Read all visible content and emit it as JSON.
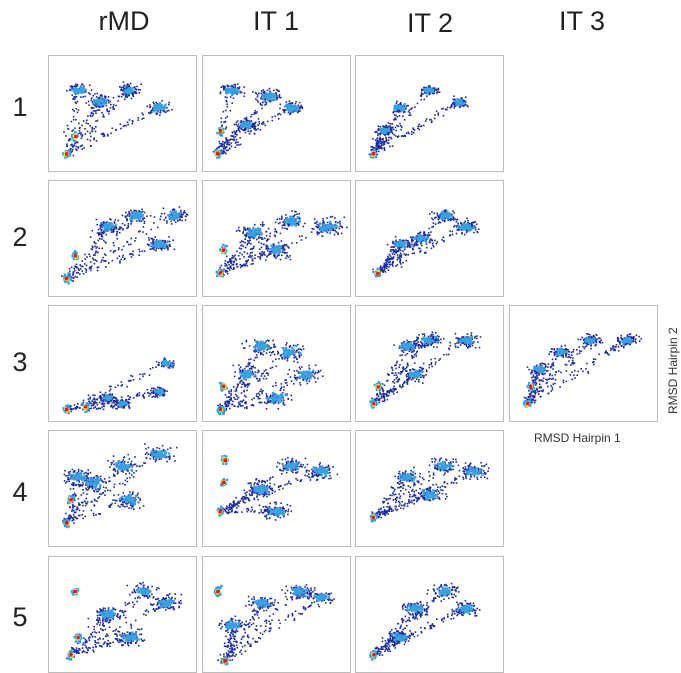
{
  "chart_data": {
    "type": "heatmap",
    "columns": [
      "rMD",
      "IT 1",
      "IT 2",
      "IT 3"
    ],
    "rows": [
      "1",
      "2",
      "3",
      "4",
      "5"
    ],
    "xlabel": "RMSD Hairpin 1",
    "ylabel": "RMSD Hairpin 2",
    "grid": false,
    "panels": [
      {
        "row": "1",
        "column": "rMD"
      },
      {
        "row": "1",
        "column": "IT 1"
      },
      {
        "row": "1",
        "column": "IT 2"
      },
      {
        "row": "2",
        "column": "rMD"
      },
      {
        "row": "2",
        "column": "IT 1"
      },
      {
        "row": "2",
        "column": "IT 2"
      },
      {
        "row": "3",
        "column": "rMD"
      },
      {
        "row": "3",
        "column": "IT 1"
      },
      {
        "row": "3",
        "column": "IT 2"
      },
      {
        "row": "3",
        "column": "IT 3"
      },
      {
        "row": "4",
        "column": "rMD"
      },
      {
        "row": "4",
        "column": "IT 1"
      },
      {
        "row": "4",
        "column": "IT 2"
      },
      {
        "row": "5",
        "column": "rMD"
      },
      {
        "row": "5",
        "column": "IT 1"
      },
      {
        "row": "5",
        "column": "IT 2"
      }
    ],
    "colors": {
      "low": "#1a2a9a",
      "mid": "#3aa0e0",
      "high": "#f0e040",
      "peak": "#d02020"
    }
  }
}
